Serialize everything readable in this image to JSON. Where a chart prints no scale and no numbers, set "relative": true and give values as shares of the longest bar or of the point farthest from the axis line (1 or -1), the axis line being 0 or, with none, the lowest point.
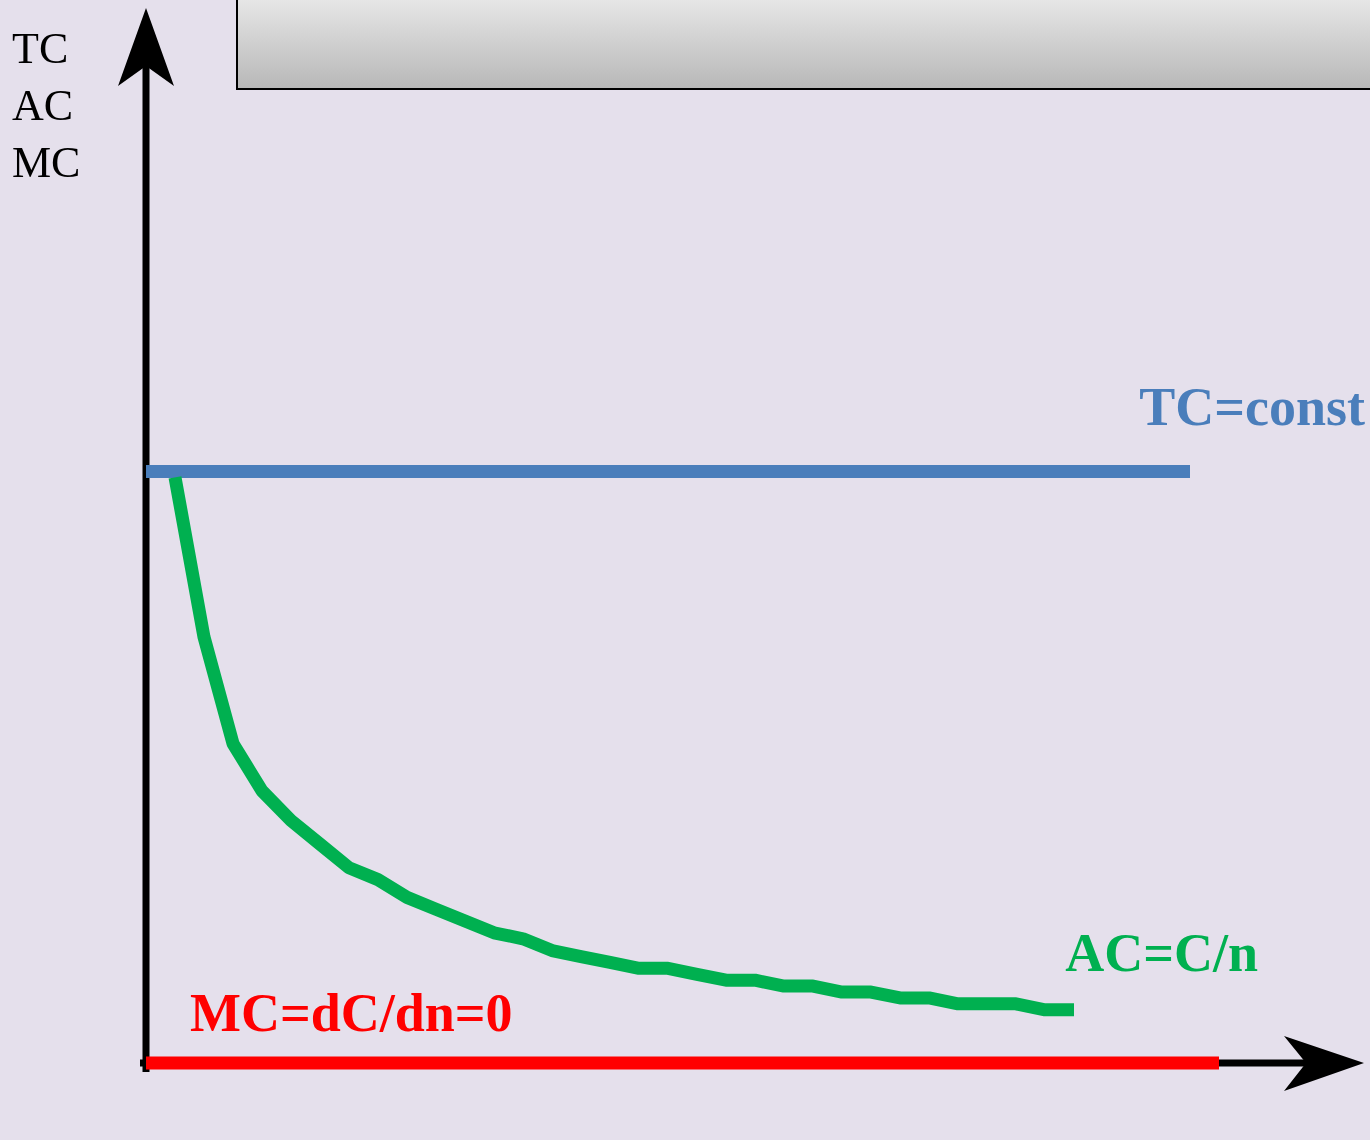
{
  "chart_data": {
    "type": "line",
    "relative": true,
    "annotations": [
      "TC",
      "AC",
      "MC"
    ],
    "categories": [
      null,
      null,
      null,
      null,
      null,
      null,
      null,
      null,
      null,
      null,
      null,
      null,
      null,
      null,
      null,
      null,
      null,
      null,
      null,
      null,
      null,
      null,
      null,
      null,
      null,
      null,
      null,
      null,
      null,
      null,
      null,
      null,
      null,
      null,
      null,
      null,
      null,
      null
    ],
    "series": [
      {
        "name": "TC=const",
        "color": "#4a7ebb",
        "values": [
          1,
          1,
          1,
          1,
          1,
          1,
          1,
          1,
          1,
          1,
          1,
          1,
          1,
          1,
          1,
          1,
          1,
          1,
          1,
          1,
          1,
          1,
          1,
          1,
          1,
          1,
          1,
          1,
          1,
          1,
          1,
          1,
          1,
          1,
          1,
          1,
          1,
          null
        ]
      },
      {
        "name": "AC=C/n",
        "color": "#00b050",
        "values": [
          null,
          0.99,
          0.72,
          0.54,
          0.46,
          0.41,
          0.37,
          0.33,
          0.31,
          0.28,
          0.26,
          0.24,
          0.22,
          0.21,
          0.19,
          0.18,
          0.17,
          0.16,
          0.16,
          0.15,
          0.14,
          0.14,
          0.13,
          0.13,
          0.12,
          0.12,
          0.11,
          0.11,
          0.1,
          0.1,
          0.1,
          0.09,
          0.09,
          null,
          null,
          null,
          null,
          null
        ]
      },
      {
        "name": "MC=dC/dn=0",
        "color": "#ff0000",
        "values": [
          0,
          0,
          0,
          0,
          0,
          0,
          0,
          0,
          0,
          0,
          0,
          0,
          0,
          0,
          0,
          0,
          0,
          0,
          0,
          0,
          0,
          0,
          0,
          0,
          0,
          0,
          0,
          0,
          0,
          0,
          0,
          0,
          0,
          0,
          0,
          0,
          0,
          0
        ]
      }
    ]
  }
}
